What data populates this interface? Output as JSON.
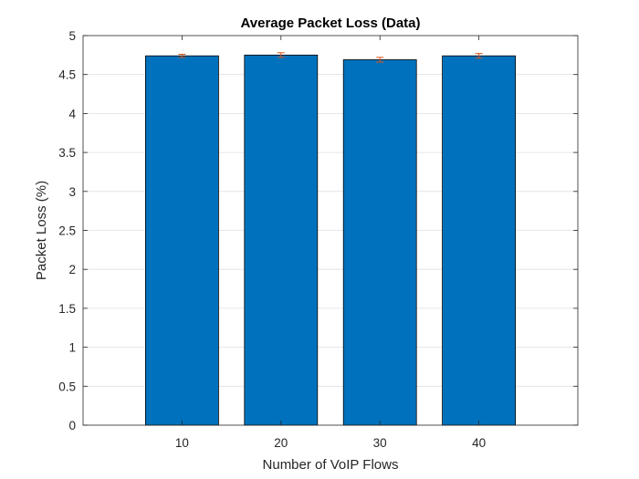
{
  "chart_data": {
    "type": "bar",
    "title": "Average Packet Loss (Data)",
    "xlabel": "Number of VoIP Flows",
    "ylabel": "Packet Loss (%)",
    "categories": [
      "10",
      "20",
      "30",
      "40"
    ],
    "x": [
      10,
      20,
      30,
      40
    ],
    "values": [
      4.74,
      4.75,
      4.69,
      4.74
    ],
    "error": [
      0.02,
      0.03,
      0.03,
      0.03
    ],
    "xlim": [
      0,
      50
    ],
    "ylim": [
      0,
      5
    ],
    "yticks": [
      0,
      0.5,
      1,
      1.5,
      2,
      2.5,
      3,
      3.5,
      4,
      4.5,
      5
    ],
    "ytick_labels": [
      "0",
      "0.5",
      "1",
      "1.5",
      "2",
      "2.5",
      "3",
      "3.5",
      "4",
      "4.5",
      "5"
    ],
    "grid": "horizontal",
    "bar_color": "#0072BD",
    "error_color": "#D95319",
    "legend": "none"
  }
}
